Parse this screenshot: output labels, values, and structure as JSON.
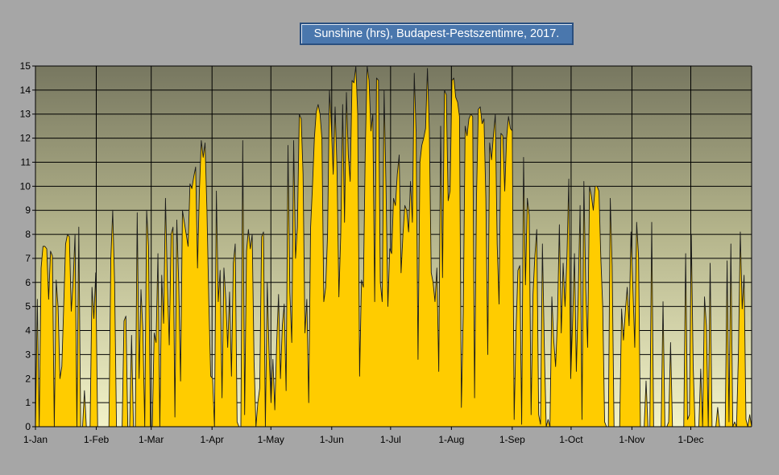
{
  "chart_data": {
    "type": "area",
    "title": "Sunshine (hrs), Budapest-Pestszentimre, 2017.",
    "xlabel": "",
    "ylabel": "",
    "ylim": [
      0,
      15
    ],
    "yticks": [
      0,
      1,
      2,
      3,
      4,
      5,
      6,
      7,
      8,
      9,
      10,
      11,
      12,
      13,
      14,
      15
    ],
    "xlim": [
      0,
      365
    ],
    "xticks": [
      {
        "label": "1-Jan",
        "day": 0
      },
      {
        "label": "1-Feb",
        "day": 31
      },
      {
        "label": "1-Mar",
        "day": 59
      },
      {
        "label": "1-Apr",
        "day": 90
      },
      {
        "label": "1-May",
        "day": 120
      },
      {
        "label": "1-Jun",
        "day": 151
      },
      {
        "label": "1-Jul",
        "day": 181
      },
      {
        "label": "1-Aug",
        "day": 212
      },
      {
        "label": "1-Sep",
        "day": 243
      },
      {
        "label": "1-Oct",
        "day": 273
      },
      {
        "label": "1-Nov",
        "day": 304
      },
      {
        "label": "1-Dec",
        "day": 334
      }
    ],
    "grid": true,
    "legend": "none",
    "colors": {
      "fill": "#ffcc00",
      "line": "#1a1a1a",
      "plot_top": "#777760",
      "plot_bottom": "#f2f2c8",
      "grid": "#000000"
    },
    "series": [
      {
        "values": [
          0,
          5.3,
          0,
          6.6,
          7.5,
          7.5,
          7.4,
          5.3,
          7.3,
          7.1,
          0,
          6.1,
          5,
          2,
          2.5,
          5,
          7.6,
          8,
          7.9,
          4.8,
          6,
          8,
          0,
          8.3,
          0,
          0,
          1.5,
          0,
          0,
          0,
          5.8,
          4.5,
          6.4,
          0,
          0,
          0,
          0,
          0,
          0,
          0,
          7,
          9,
          6,
          0,
          0,
          0,
          0,
          4.4,
          4.6,
          0,
          0,
          3.8,
          0,
          0,
          8.9,
          2,
          5.7,
          4,
          0,
          9,
          7.5,
          0,
          0,
          3.9,
          3.5,
          7.2,
          0,
          6.3,
          4.3,
          9.5,
          6,
          3.4,
          8,
          8.3,
          0.4,
          8.6,
          6,
          1.9,
          9,
          8.5,
          8,
          7.5,
          10.1,
          9.9,
          10.4,
          10.8,
          6.6,
          9.8,
          11.9,
          11.2,
          11.8,
          9,
          5.2,
          2.1,
          2,
          0,
          9.8,
          5.2,
          6.5,
          1.2,
          6.6,
          5.3,
          3.3,
          5.6,
          2.1,
          6.8,
          7.6,
          0.2,
          0,
          0,
          11.9,
          0.5,
          7.3,
          8.2,
          7.4,
          8,
          2.7,
          0,
          1,
          1.6,
          7.9,
          8.1,
          0,
          6,
          3,
          1,
          2.8,
          0.7,
          3.5,
          5.5,
          2,
          4.2,
          5.1,
          1.5,
          11.7,
          5.6,
          3.5,
          11.9,
          7,
          8.3,
          13,
          12.8,
          10.5,
          3.9,
          5.3,
          1,
          8.3,
          10,
          12,
          13.1,
          13.4,
          13,
          12,
          5.2,
          5.8,
          8,
          14,
          12.5,
          10.5,
          13.3,
          10.8,
          5.4,
          8,
          13.4,
          8.5,
          13.9,
          11.3,
          10.2,
          14.4,
          14.3,
          15,
          13,
          2.1,
          6.1,
          5.8,
          11.5,
          15,
          14.4,
          12.3,
          13,
          5.2,
          14.5,
          14.4,
          6,
          5.2,
          14,
          10,
          5,
          7.4,
          7.2,
          9.5,
          9.2,
          10.5,
          11.3,
          6.4,
          8,
          9.2,
          9,
          8.1,
          10.2,
          8.5,
          14.7,
          12.2,
          2.8,
          11,
          11.7,
          12,
          12.4,
          14.9,
          12.3,
          6.4,
          6,
          5.2,
          6.6,
          2.3,
          12.5,
          6.2,
          14,
          13.8,
          9.4,
          9.8,
          14.4,
          14.5,
          13.7,
          13.5,
          12.9,
          0.8,
          4.7,
          12.5,
          12.1,
          12.8,
          13,
          12.9,
          1.2,
          9.5,
          13.2,
          13.3,
          12.6,
          12.8,
          9.5,
          3,
          11.8,
          11.1,
          12.1,
          13,
          7.6,
          5.1,
          12.2,
          12.1,
          9.8,
          12,
          12.9,
          12.4,
          12.3,
          0.3,
          4,
          6.5,
          6.7,
          0.1,
          11.2,
          5.9,
          9.5,
          8.8,
          0.5,
          5.5,
          7.1,
          8.2,
          0.5,
          0.1,
          7.6,
          3.3,
          0,
          0.3,
          0,
          5.4,
          3.6,
          2.5,
          4.5,
          8.4,
          3.9,
          6.8,
          5,
          7,
          10.3,
          2,
          4.3,
          7.2,
          2.3,
          5.5,
          9.2,
          0.3,
          10.2,
          5.7,
          3.3,
          10,
          9.6,
          9,
          10,
          10,
          9.8,
          7,
          5,
          0.2,
          0,
          0,
          9.5,
          6.7,
          0,
          0,
          0,
          0,
          4.9,
          3.6,
          4.8,
          5.8,
          4.2,
          8.1,
          5.8,
          3.3,
          8.5,
          7.1,
          0,
          0,
          0,
          1.9,
          0,
          0,
          8.5,
          0,
          0,
          0,
          0,
          0,
          5.2,
          0,
          0,
          0.2,
          3.5,
          0,
          0,
          0,
          0,
          0,
          0,
          0,
          7.2,
          0.3,
          0.5,
          8,
          2.5,
          0,
          0,
          0,
          2.4,
          0,
          5.4,
          4.2,
          0,
          6.8,
          0,
          0,
          0,
          0.8,
          0,
          0,
          0,
          0,
          6.9,
          0.2,
          7.6,
          0,
          0.2,
          0,
          3,
          8.1,
          4.9,
          6.3,
          0.3,
          0,
          0.5,
          0
        ]
      }
    ]
  }
}
